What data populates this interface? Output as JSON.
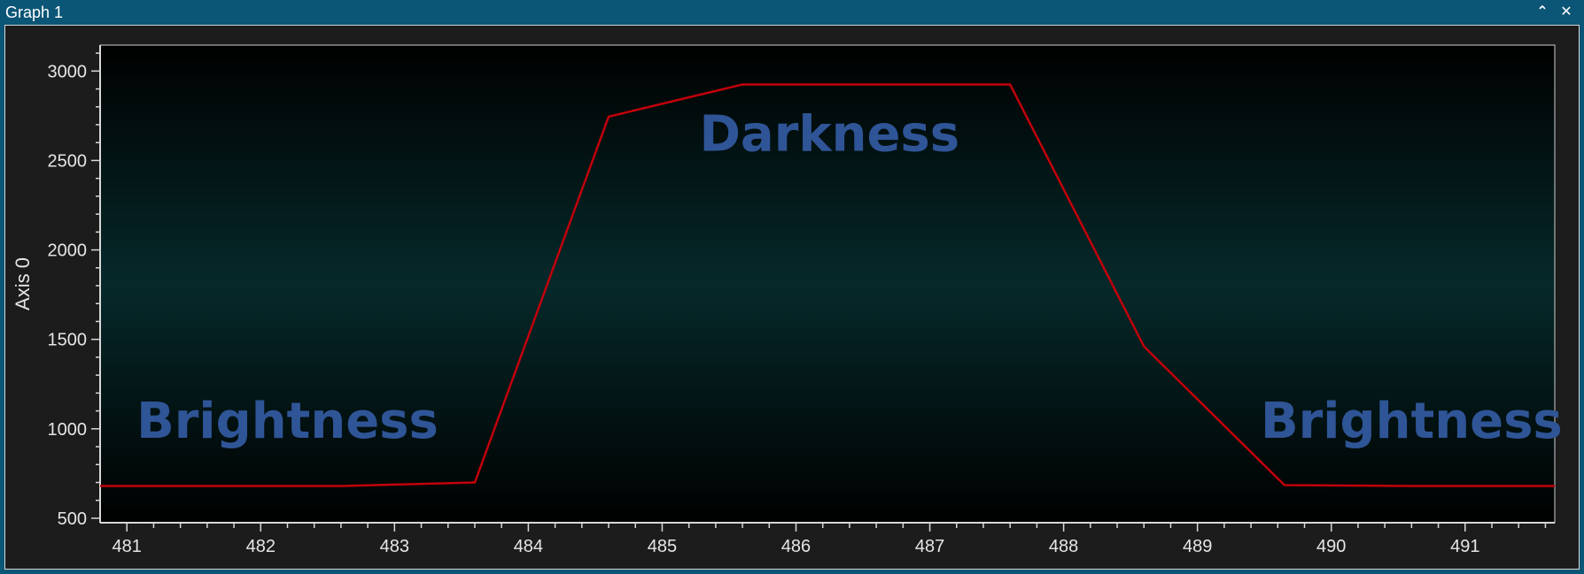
{
  "window": {
    "title": "Graph 1",
    "collapse_icon": "chevron-up-icon",
    "close_icon": "close-icon"
  },
  "colors": {
    "titlebar": "#0b5576",
    "series": "#c2000b",
    "annotation": "#2f5597",
    "axis_text": "#e6e6e6"
  },
  "chart_data": {
    "type": "line",
    "ylabel": "Axis 0",
    "xlabel": "",
    "xlim": [
      480.8,
      491.67
    ],
    "ylim": [
      475,
      3145
    ],
    "x_ticks": [
      481,
      482,
      483,
      484,
      485,
      486,
      487,
      488,
      489,
      490,
      491
    ],
    "y_ticks": [
      500,
      1000,
      1500,
      2000,
      2500,
      3000
    ],
    "grid": false,
    "series": [
      {
        "name": "",
        "x": [
          480.8,
          482.6,
          483.6,
          484.6,
          485.6,
          486.6,
          487.6,
          488.6,
          489.65,
          490.6,
          491.67
        ],
        "values": [
          680,
          680,
          700,
          2745,
          2925,
          2925,
          2925,
          1460,
          685,
          680,
          680
        ]
      }
    ],
    "annotations": [
      {
        "text": "Brightness",
        "x": 482.2,
        "y": 950
      },
      {
        "text": "Darkness",
        "x": 486.25,
        "y": 2555
      },
      {
        "text": "Brightness",
        "x": 490.6,
        "y": 950
      }
    ]
  }
}
